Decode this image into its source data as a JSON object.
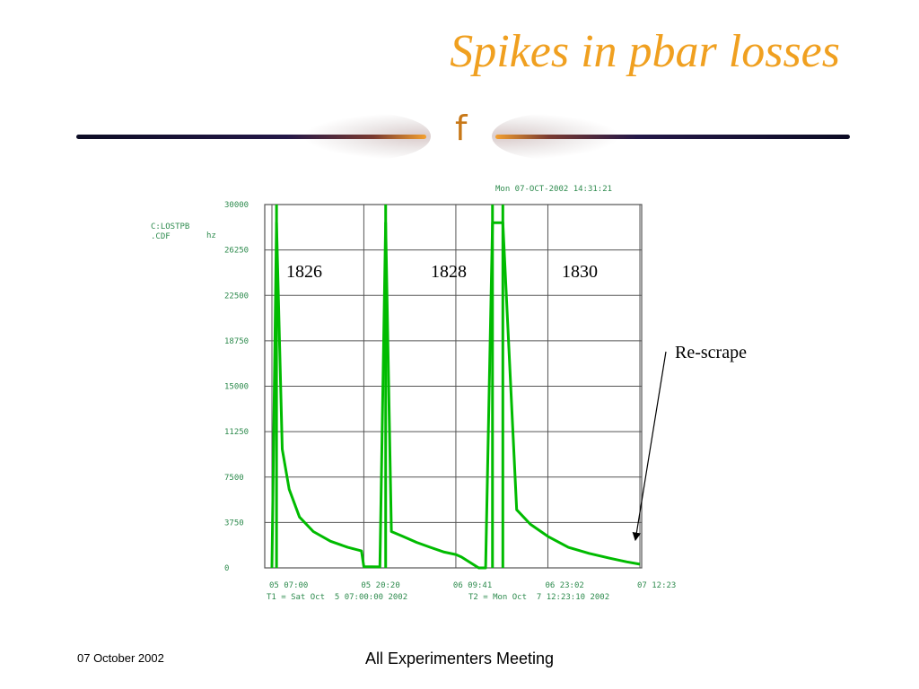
{
  "slide": {
    "title": "Spikes in pbar losses",
    "divider_glyph": "f",
    "footer_date": "07 October 2002",
    "footer_title": "All Experimenters Meeting"
  },
  "colors": {
    "title": "#f0a020",
    "trace": "#00bb00",
    "grid": "#555555",
    "plot_text": "#2e8b4e"
  },
  "chart_data": {
    "type": "line",
    "timestamp": "Mon 07-OCT-2002 14:31:21",
    "device": [
      "C:LOSTPB",
      ".CDF"
    ],
    "unit": "hz",
    "ylim": [
      0,
      30000
    ],
    "y_ticks": [
      "0",
      "3750",
      "7500",
      "11250",
      "15000",
      "18750",
      "22500",
      "26250",
      "30000"
    ],
    "x_ticks": [
      "05 07:00",
      "05 20:20",
      "06 09:41",
      "06 23:02",
      "07 12:23"
    ],
    "t1": "T1 = Sat Oct  5 07:00:00 2002",
    "t2": "T2 = Mon Oct  7 12:23:10 2002",
    "grid": true,
    "store_labels": [
      "1826",
      "1828",
      "1830"
    ],
    "annotation": "Re-scrape",
    "series": [
      {
        "x": [
          "05 07:00",
          "05 07:40",
          "05 08:30",
          "05 09:30",
          "05 11:00",
          "05 13:00",
          "05 15:30",
          "05 18:00",
          "05 20:00",
          "05 20:20",
          "05 22:40",
          "05 23:30",
          "06 00:20",
          "06 02:00",
          "06 04:00",
          "06 06:00",
          "06 08:00",
          "06 09:41",
          "06 10:30",
          "06 13:00",
          "06 14:00",
          "06 15:00",
          "06 16:30",
          "06 18:30",
          "06 20:30",
          "06 23:02",
          "07 02:00",
          "07 05:00",
          "07 08:00",
          "07 10:30",
          "07 12:23"
        ],
        "y": [
          0,
          28500,
          9800,
          6500,
          4200,
          3000,
          2200,
          1700,
          1400,
          100,
          80,
          28500,
          3000,
          2600,
          2100,
          1700,
          1300,
          1100,
          900,
          0,
          0,
          28500,
          28500,
          4800,
          3600,
          2600,
          1700,
          1200,
          800,
          500,
          300
        ]
      }
    ],
    "spike_x": [
      "05 07:40",
      "05 23:30",
      "06 15:00",
      "06 16:30"
    ]
  }
}
